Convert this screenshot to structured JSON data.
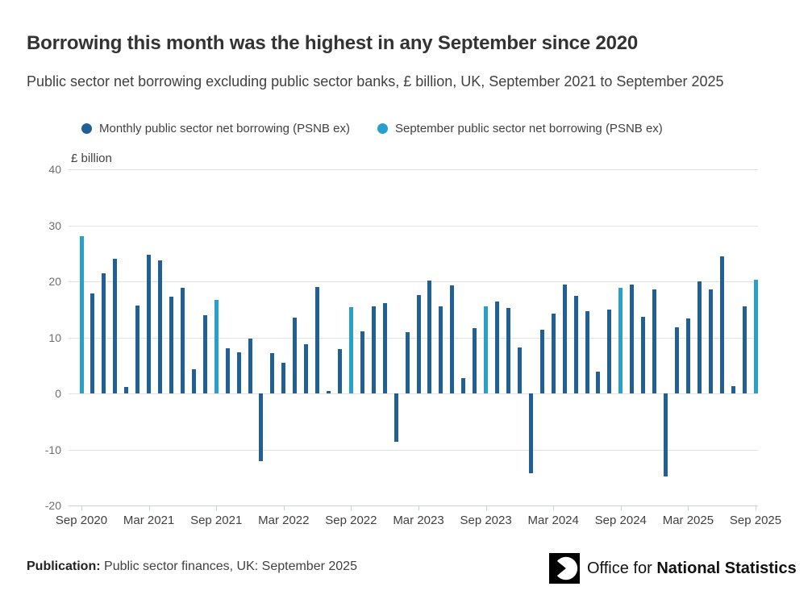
{
  "header": {
    "title": "Borrowing this month was the highest in any September since 2020",
    "subtitle": "Public sector net borrowing excluding public sector banks, £ billion, UK, September 2021 to September 2025"
  },
  "legend": [
    {
      "label": "Monthly public sector net borrowing (PSNB ex)",
      "color": "#206095"
    },
    {
      "label": "September public sector net borrowing (PSNB ex)",
      "color": "#27A0CC"
    }
  ],
  "chart_data": {
    "type": "bar",
    "title": "Borrowing this month was the highest in any September since 2020",
    "subtitle": "Public sector net borrowing excluding public sector banks, £ billion, UK, September 2021 to September 2025",
    "unit_label": "£ billion",
    "ylabel": "£ billion",
    "xlabel": "",
    "ylim": [
      -20,
      40
    ],
    "yticks": [
      40,
      30,
      20,
      10,
      0,
      -10,
      -20
    ],
    "grid": true,
    "legend_position": "top",
    "colors": {
      "monthly": "#206095",
      "september": "#27A0CC"
    },
    "xtick_labels": [
      "Sep 2020",
      "Mar 2021",
      "Sep 2021",
      "Mar 2022",
      "Sep 2022",
      "Mar 2023",
      "Sep 2023",
      "Mar 2024",
      "Sep 2024",
      "Mar 2025",
      "Sep 2025"
    ],
    "xtick_month_indices": [
      0,
      6,
      12,
      18,
      24,
      30,
      36,
      42,
      48,
      54,
      60
    ],
    "points": [
      {
        "month": "Sep 2020",
        "value": 28.0,
        "september": true
      },
      {
        "month": "Oct 2020",
        "value": 17.8,
        "september": false
      },
      {
        "month": "Nov 2020",
        "value": 21.4,
        "september": false
      },
      {
        "month": "Dec 2020",
        "value": 24.0,
        "september": false
      },
      {
        "month": "Jan 2021",
        "value": 1.1,
        "september": false
      },
      {
        "month": "Feb 2021",
        "value": 15.7,
        "september": false
      },
      {
        "month": "Mar 2021",
        "value": 24.8,
        "september": false
      },
      {
        "month": "Apr 2021",
        "value": 23.7,
        "september": false
      },
      {
        "month": "May 2021",
        "value": 17.2,
        "september": false
      },
      {
        "month": "Jun 2021",
        "value": 18.8,
        "september": false
      },
      {
        "month": "Jul 2021",
        "value": 4.3,
        "september": false
      },
      {
        "month": "Aug 2021",
        "value": 13.9,
        "september": false
      },
      {
        "month": "Sep 2021",
        "value": 16.7,
        "september": true
      },
      {
        "month": "Oct 2021",
        "value": 8.1,
        "september": false
      },
      {
        "month": "Nov 2021",
        "value": 7.4,
        "september": false
      },
      {
        "month": "Dec 2021",
        "value": 9.8,
        "september": false
      },
      {
        "month": "Jan 2022",
        "value": -12.1,
        "september": false
      },
      {
        "month": "Feb 2022",
        "value": 7.2,
        "september": false
      },
      {
        "month": "Mar 2022",
        "value": 5.5,
        "september": false
      },
      {
        "month": "Apr 2022",
        "value": 13.5,
        "september": false
      },
      {
        "month": "May 2022",
        "value": 8.8,
        "september": false
      },
      {
        "month": "Jun 2022",
        "value": 19.0,
        "september": false
      },
      {
        "month": "Jul 2022",
        "value": 0.5,
        "september": false
      },
      {
        "month": "Aug 2022",
        "value": 7.9,
        "september": false
      },
      {
        "month": "Sep 2022",
        "value": 15.4,
        "september": true
      },
      {
        "month": "Oct 2022",
        "value": 11.1,
        "september": false
      },
      {
        "month": "Nov 2022",
        "value": 15.6,
        "september": false
      },
      {
        "month": "Dec 2022",
        "value": 16.1,
        "september": false
      },
      {
        "month": "Jan 2023",
        "value": -8.7,
        "september": false
      },
      {
        "month": "Feb 2023",
        "value": 11.0,
        "september": false
      },
      {
        "month": "Mar 2023",
        "value": 17.6,
        "september": false
      },
      {
        "month": "Apr 2023",
        "value": 20.2,
        "september": false
      },
      {
        "month": "May 2023",
        "value": 15.6,
        "september": false
      },
      {
        "month": "Jun 2023",
        "value": 19.3,
        "september": false
      },
      {
        "month": "Jul 2023",
        "value": 2.8,
        "september": false
      },
      {
        "month": "Aug 2023",
        "value": 11.7,
        "september": false
      },
      {
        "month": "Sep 2023",
        "value": 15.5,
        "september": true
      },
      {
        "month": "Oct 2023",
        "value": 16.4,
        "september": false
      },
      {
        "month": "Nov 2023",
        "value": 15.2,
        "september": false
      },
      {
        "month": "Dec 2023",
        "value": 8.2,
        "september": false
      },
      {
        "month": "Jan 2024",
        "value": -14.3,
        "september": false
      },
      {
        "month": "Feb 2024",
        "value": 11.3,
        "september": false
      },
      {
        "month": "Mar 2024",
        "value": 14.3,
        "september": false
      },
      {
        "month": "Apr 2024",
        "value": 19.4,
        "september": false
      },
      {
        "month": "May 2024",
        "value": 17.4,
        "september": false
      },
      {
        "month": "Jun 2024",
        "value": 14.7,
        "september": false
      },
      {
        "month": "Jul 2024",
        "value": 3.9,
        "september": false
      },
      {
        "month": "Aug 2024",
        "value": 14.9,
        "september": false
      },
      {
        "month": "Sep 2024",
        "value": 18.9,
        "september": true
      },
      {
        "month": "Oct 2024",
        "value": 19.4,
        "september": false
      },
      {
        "month": "Nov 2024",
        "value": 13.6,
        "september": false
      },
      {
        "month": "Dec 2024",
        "value": 18.6,
        "september": false
      },
      {
        "month": "Jan 2025",
        "value": -14.8,
        "september": false
      },
      {
        "month": "Feb 2025",
        "value": 11.8,
        "september": false
      },
      {
        "month": "Mar 2025",
        "value": 13.4,
        "september": false
      },
      {
        "month": "Apr 2025",
        "value": 20.0,
        "september": false
      },
      {
        "month": "May 2025",
        "value": 18.5,
        "september": false
      },
      {
        "month": "Jun 2025",
        "value": 24.5,
        "september": false
      },
      {
        "month": "Jul 2025",
        "value": 1.3,
        "september": false
      },
      {
        "month": "Aug 2025",
        "value": 15.6,
        "september": false
      },
      {
        "month": "Sep 2025",
        "value": 20.3,
        "september": true
      }
    ]
  },
  "footer": {
    "publication_label": "Publication:",
    "publication_text": "Public sector finances, UK: September 2025",
    "logo_text_regular": "Office for ",
    "logo_text_bold": "National Statistics"
  }
}
